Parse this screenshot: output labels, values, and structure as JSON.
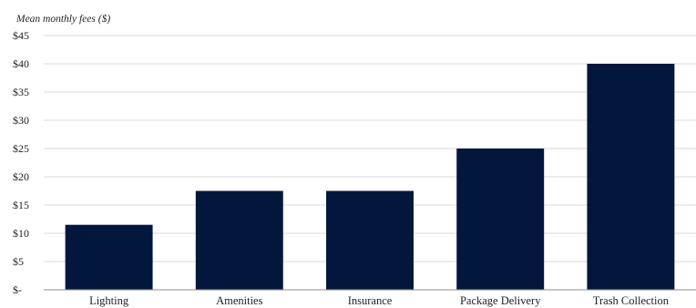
{
  "chart_data": {
    "type": "bar",
    "ylabel": "Mean monthly fees ($)",
    "categories": [
      "Lighting",
      "Amenities",
      "Insurance",
      "Package Delivery",
      "Trash Collection"
    ],
    "values": [
      11.5,
      17.5,
      17.5,
      25,
      40
    ],
    "ylim": [
      0,
      45
    ],
    "yticks": [
      0,
      5,
      10,
      15,
      20,
      25,
      30,
      35,
      40,
      45
    ],
    "ytick_labels": [
      "$-",
      "$5",
      "$10",
      "$15",
      "$20",
      "$25",
      "$30",
      "$35",
      "$40",
      "$45"
    ],
    "grid": true,
    "bar_color": "#03173d",
    "grid_color": "#d9d9d9"
  }
}
